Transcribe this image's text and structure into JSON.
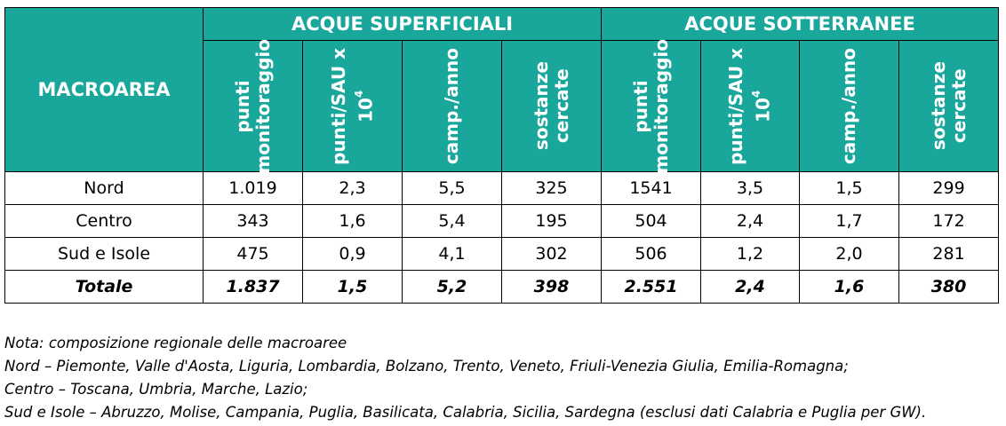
{
  "table": {
    "macro_header": "MACROAREA",
    "groups": [
      "ACQUE SUPERFICIALI",
      "ACQUE SOTTERRANEE"
    ],
    "subheaders": [
      {
        "line1": "punti",
        "line2": "monitoraggio"
      },
      {
        "line1": "punti/SAU x",
        "line2": "10",
        "sup": "4"
      },
      {
        "line1": "camp./anno",
        "line2": ""
      },
      {
        "line1": "sostanze",
        "line2": "cercate"
      },
      {
        "line1": "punti",
        "line2": "monitoraggio"
      },
      {
        "line1": "punti/SAU x",
        "line2": "10",
        "sup": "4"
      },
      {
        "line1": "camp./anno",
        "line2": ""
      },
      {
        "line1": "sostanze",
        "line2": "cercate"
      }
    ],
    "rows": [
      {
        "label": "Nord",
        "values": [
          "1.019",
          "2,3",
          "5,5",
          "325",
          "1541",
          "3,5",
          "1,5",
          "299"
        ]
      },
      {
        "label": "Centro",
        "values": [
          "343",
          "1,6",
          "5,4",
          "195",
          "504",
          "2,4",
          "1,7",
          "172"
        ]
      },
      {
        "label": "Sud e Isole",
        "values": [
          "475",
          "0,9",
          "4,1",
          "302",
          "506",
          "1,2",
          "2,0",
          "281"
        ]
      },
      {
        "label": "Totale",
        "values": [
          "1.837",
          "1,5",
          "5,2",
          "398",
          "2.551",
          "2,4",
          "1,6",
          "380"
        ]
      }
    ]
  },
  "notes": [
    "Nota: composizione regionale delle macroaree",
    "Nord – Piemonte, Valle d'Aosta, Liguria, Lombardia, Bolzano, Trento, Veneto, Friuli-Venezia Giulia, Emilia-Romagna;",
    "Centro – Toscana, Umbria, Marche, Lazio;",
    "Sud e Isole – Abruzzo, Molise, Campania, Puglia, Basilicata, Calabria, Sicilia, Sardegna (esclusi dati Calabria e Puglia per GW)."
  ],
  "colors": {
    "header_bg": "#19a79c",
    "header_text": "#ffffff"
  }
}
